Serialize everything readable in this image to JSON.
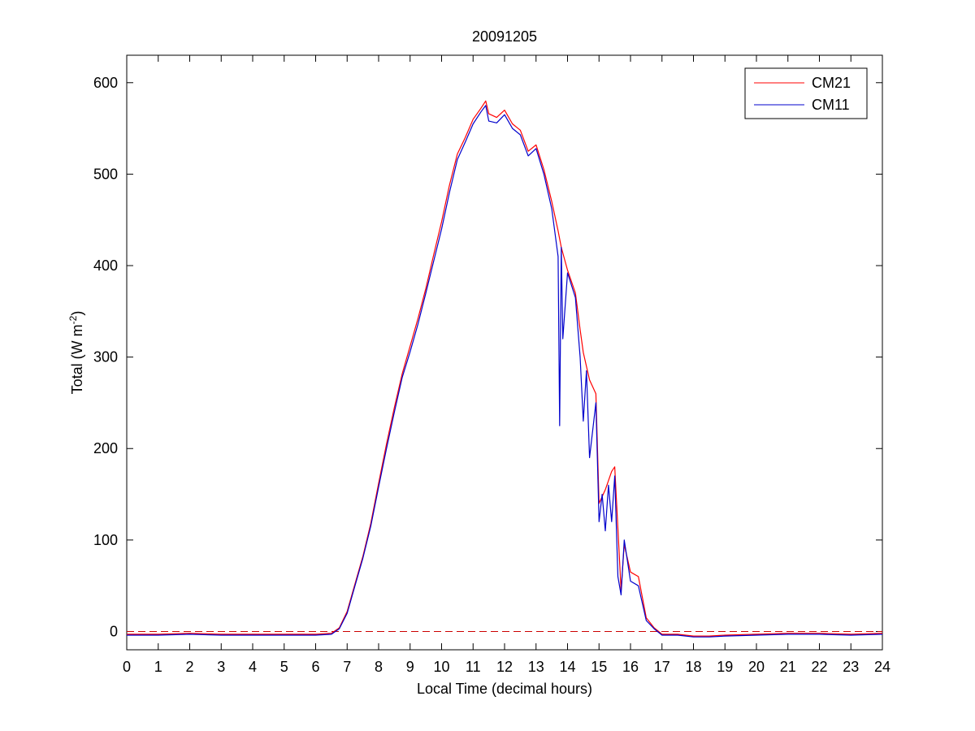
{
  "chart_data": {
    "type": "line",
    "title": "20091205",
    "xlabel": "Local Time (decimal hours)",
    "ylabel": {
      "prefix": "Total (W m",
      "superscript": "-2",
      "suffix": ")"
    },
    "xlim": [
      0,
      24
    ],
    "ylim": [
      -20,
      630
    ],
    "x_ticks": [
      0,
      1,
      2,
      3,
      4,
      5,
      6,
      7,
      8,
      9,
      10,
      11,
      12,
      13,
      14,
      15,
      16,
      17,
      18,
      19,
      20,
      21,
      22,
      23,
      24
    ],
    "y_ticks": [
      0,
      100,
      200,
      300,
      400,
      500,
      600
    ],
    "grid": false,
    "legend_position": "top-right",
    "reference_line": {
      "y": 0,
      "style": "dashed",
      "color": "#cc0000"
    },
    "series": [
      {
        "name": "CM21",
        "color": "#ff0000",
        "x": [
          0,
          1,
          2,
          3,
          4,
          5,
          6,
          6.5,
          6.75,
          7,
          7.25,
          7.5,
          7.75,
          8,
          8.25,
          8.5,
          8.75,
          9,
          9.25,
          9.5,
          9.75,
          10,
          10.25,
          10.5,
          10.75,
          11,
          11.25,
          11.4,
          11.5,
          11.75,
          12,
          12.25,
          12.5,
          12.75,
          13,
          13.25,
          13.5,
          13.7,
          13.8,
          14,
          14.25,
          14.4,
          14.5,
          14.7,
          14.9,
          15,
          15.2,
          15.4,
          15.5,
          15.7,
          15.8,
          16,
          16.25,
          16.5,
          16.75,
          17,
          17.5,
          18,
          18.5,
          19,
          20,
          21,
          22,
          23,
          24
        ],
        "values": [
          -3,
          -3,
          -2,
          -3,
          -3,
          -3,
          -3,
          -2,
          4,
          22,
          52,
          82,
          118,
          162,
          205,
          245,
          282,
          312,
          342,
          375,
          412,
          448,
          488,
          522,
          540,
          560,
          572,
          580,
          566,
          562,
          570,
          555,
          548,
          525,
          532,
          505,
          470,
          438,
          420,
          395,
          370,
          330,
          305,
          275,
          260,
          140,
          155,
          175,
          180,
          45,
          95,
          65,
          60,
          15,
          4,
          -3,
          -3,
          -5,
          -5,
          -4,
          -3,
          -2,
          -2,
          -3,
          -2
        ]
      },
      {
        "name": "CM11",
        "color": "#0000cc",
        "x": [
          0,
          1,
          2,
          3,
          4,
          5,
          6,
          6.5,
          6.75,
          7,
          7.25,
          7.5,
          7.75,
          8,
          8.25,
          8.5,
          8.75,
          9,
          9.25,
          9.5,
          9.75,
          10,
          10.25,
          10.5,
          10.75,
          11,
          11.25,
          11.4,
          11.5,
          11.75,
          12,
          12.25,
          12.5,
          12.75,
          13,
          13.25,
          13.5,
          13.7,
          13.75,
          13.8,
          13.85,
          14,
          14.25,
          14.4,
          14.5,
          14.6,
          14.7,
          14.9,
          15,
          15.1,
          15.2,
          15.3,
          15.4,
          15.5,
          15.6,
          15.7,
          15.8,
          16,
          16.25,
          16.5,
          16.75,
          17,
          17.5,
          18,
          18.5,
          19,
          20,
          21,
          22,
          23,
          24
        ],
        "values": [
          -4,
          -4,
          -3,
          -4,
          -4,
          -4,
          -4,
          -3,
          3,
          20,
          50,
          80,
          115,
          158,
          200,
          240,
          278,
          306,
          336,
          370,
          405,
          440,
          480,
          516,
          535,
          555,
          568,
          575,
          558,
          556,
          565,
          550,
          543,
          520,
          528,
          500,
          462,
          410,
          225,
          420,
          320,
          392,
          365,
          300,
          230,
          285,
          190,
          250,
          120,
          150,
          110,
          160,
          120,
          170,
          60,
          40,
          100,
          55,
          50,
          12,
          3,
          -4,
          -4,
          -6,
          -6,
          -5,
          -4,
          -3,
          -3,
          -4,
          -3
        ]
      }
    ]
  }
}
